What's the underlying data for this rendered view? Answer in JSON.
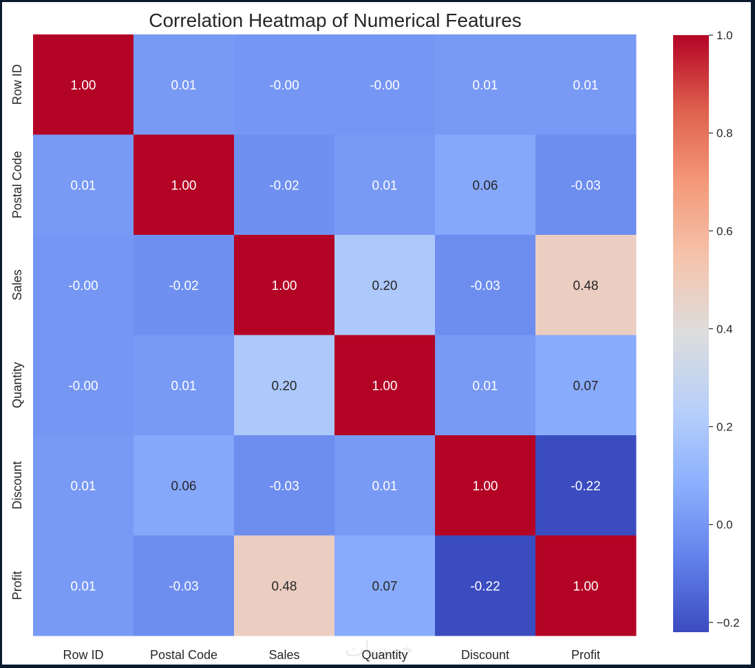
{
  "chart_data": {
    "type": "heatmap",
    "title": "Correlation Heatmap of Numerical Features",
    "labels": [
      "Row ID",
      "Postal Code",
      "Sales",
      "Quantity",
      "Discount",
      "Profit"
    ],
    "matrix": [
      [
        1.0,
        0.01,
        -0.0,
        -0.0,
        0.01,
        0.01
      ],
      [
        0.01,
        1.0,
        -0.02,
        0.01,
        0.06,
        -0.03
      ],
      [
        -0.0,
        -0.02,
        1.0,
        0.2,
        -0.03,
        0.48
      ],
      [
        -0.0,
        0.01,
        0.2,
        1.0,
        0.01,
        0.07
      ],
      [
        0.01,
        0.06,
        -0.03,
        0.01,
        1.0,
        -0.22
      ],
      [
        0.01,
        -0.03,
        0.48,
        0.07,
        -0.22,
        1.0
      ]
    ],
    "annotation_format": "0.00",
    "colormap": "coolwarm",
    "vmin": -0.22,
    "vmax": 1.0,
    "colorbar_ticks": [
      -0.2,
      0.0,
      0.2,
      0.4,
      0.6,
      0.8,
      1.0
    ],
    "colorbar_tick_labels": [
      "−0.2",
      "0.0",
      "0.2",
      "0.4",
      "0.6",
      "0.8",
      "1.0"
    ]
  },
  "watermark": "خمسات"
}
